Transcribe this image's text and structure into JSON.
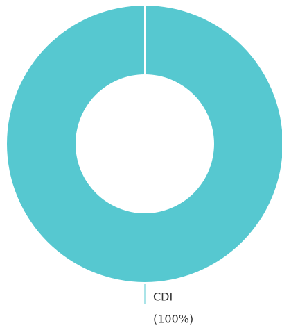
{
  "chart_data": {
    "type": "donut",
    "categories": [
      "CDI"
    ],
    "values": [
      100
    ],
    "value_labels": [
      "(100%)"
    ],
    "colors": [
      "#56c8d0"
    ]
  }
}
